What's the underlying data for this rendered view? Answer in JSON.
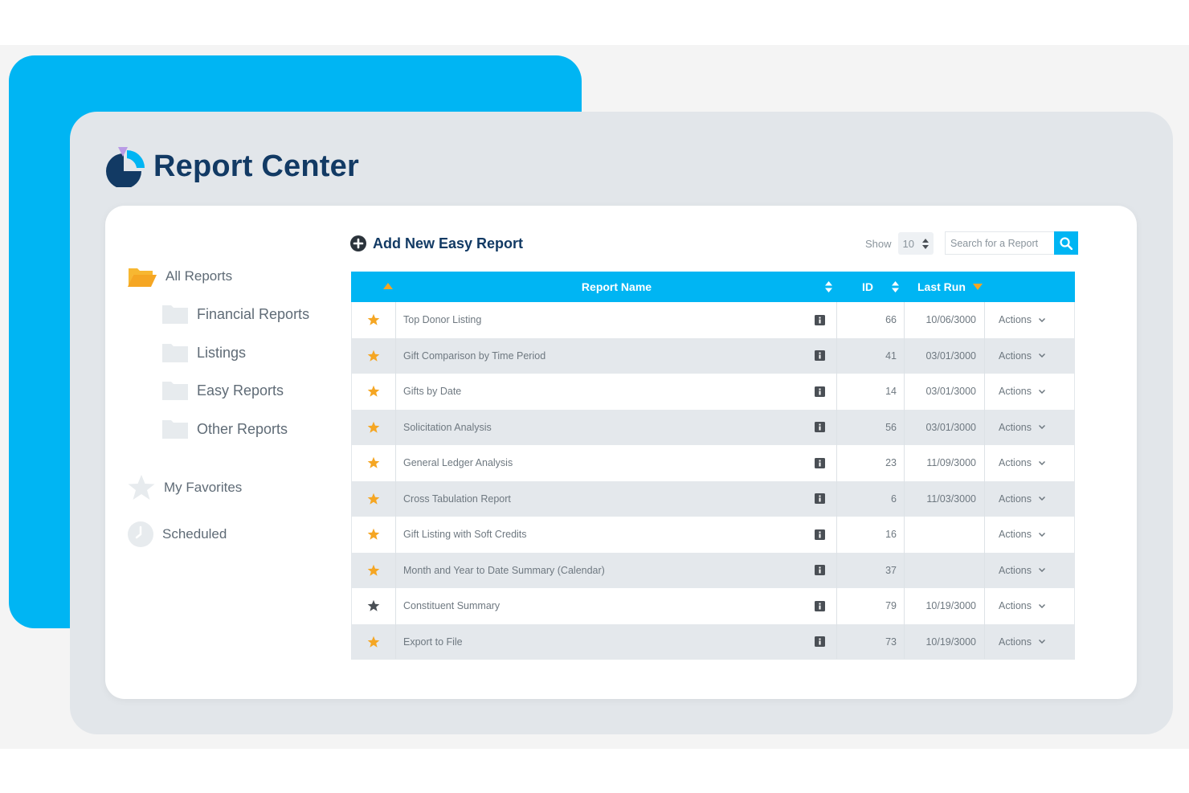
{
  "app": {
    "title": "Report Center",
    "logo_icon": "pie-chart-logo-icon"
  },
  "colors": {
    "accent": "#00b5f3",
    "brand_navy": "#123a64",
    "star_favorite": "#f5a623",
    "star_normal": "#4a4f55",
    "folder_open": "#f5a623"
  },
  "sidebar": {
    "all_reports": {
      "label": "All Reports",
      "icon": "folder-open-icon"
    },
    "folders": [
      {
        "label": "Financial Reports",
        "icon": "folder-icon"
      },
      {
        "label": "Listings",
        "icon": "folder-icon"
      },
      {
        "label": "Easy Reports",
        "icon": "folder-icon"
      },
      {
        "label": "Other Reports",
        "icon": "folder-icon"
      }
    ],
    "favorites": {
      "label": "My  Favorites",
      "icon": "star-icon"
    },
    "scheduled": {
      "label": "Scheduled",
      "icon": "clock-icon"
    }
  },
  "toolbar": {
    "add_label": "Add New Easy Report",
    "show_label": "Show",
    "show_value": "10",
    "search_placeholder": "Search for a Report"
  },
  "table": {
    "columns": {
      "name": "Report Name",
      "id": "ID",
      "last_run": "Last Run"
    },
    "action_label": "Actions",
    "rows": [
      {
        "name": "Top Donor Listing",
        "id": "66",
        "last_run": "10/06/3000",
        "favorite": true
      },
      {
        "name": "Gift Comparison by Time Period",
        "id": "41",
        "last_run": "03/01/3000",
        "favorite": true
      },
      {
        "name": "Gifts by Date",
        "id": "14",
        "last_run": "03/01/3000",
        "favorite": true
      },
      {
        "name": "Solicitation Analysis",
        "id": "56",
        "last_run": "03/01/3000",
        "favorite": true
      },
      {
        "name": "General Ledger Analysis",
        "id": "23",
        "last_run": "11/09/3000",
        "favorite": true
      },
      {
        "name": "Cross Tabulation Report",
        "id": "6",
        "last_run": "11/03/3000",
        "favorite": true
      },
      {
        "name": "Gift Listing with Soft Credits",
        "id": "16",
        "last_run": "",
        "favorite": true
      },
      {
        "name": "Month and Year to Date Summary (Calendar)",
        "id": "37",
        "last_run": "",
        "favorite": true
      },
      {
        "name": "Constituent Summary",
        "id": "79",
        "last_run": "10/19/3000",
        "favorite": false
      },
      {
        "name": "Export to File",
        "id": "73",
        "last_run": "10/19/3000",
        "favorite": true
      }
    ]
  }
}
